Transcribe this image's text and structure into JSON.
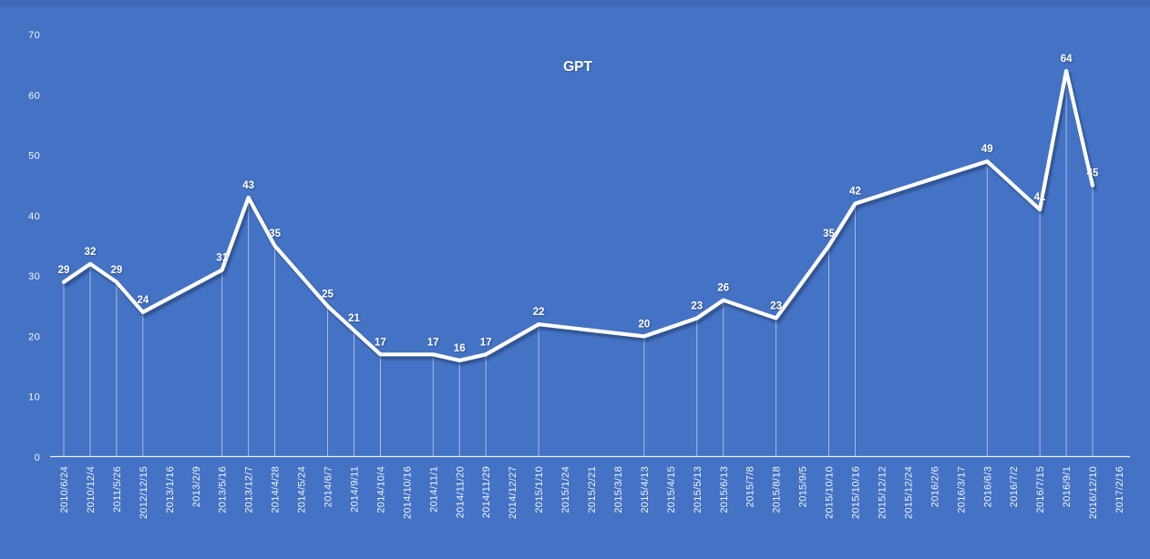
{
  "title": "GPT",
  "colors": {
    "background": "#4472C4",
    "top_edge": "#3E69B8",
    "line": "#FFFFFF",
    "line_shadow": "rgba(24,44,84,0.45)",
    "data_label": "#FFFFFF",
    "tick_label": "#F2F6FC",
    "axis_line": "rgba(255,255,255,0.9)",
    "drop_line": "rgba(255,255,255,0.6)"
  },
  "chart_data": {
    "type": "line",
    "title": "GPT",
    "categories": [
      "2010/6/24",
      "2010/12/4",
      "2011/5/26",
      "2012/12/15",
      "2013/1/16",
      "2013/2/9",
      "2013/5/16",
      "2013/12/7",
      "2014/4/28",
      "2014/5/24",
      "2014/6/7",
      "2014/9/11",
      "2014/10/4",
      "2014/10/16",
      "2014/11/1",
      "2014/11/20",
      "2014/11/29",
      "2014/12/27",
      "2015/1/10",
      "2015/1/24",
      "2015/2/21",
      "2015/3/18",
      "2015/4/13",
      "2015/4/15",
      "2015/5/13",
      "2015/6/13",
      "2015/7/8",
      "2015/8/18",
      "2015/9/5",
      "2015/10/10",
      "2015/10/16",
      "2015/12/12",
      "2015/12/24",
      "2016/2/6",
      "2016/3/17",
      "2016/6/3",
      "2016/7/2",
      "2016/7/15",
      "2016/9/1",
      "2016/12/10",
      "2017/2/16"
    ],
    "values": [
      29,
      32,
      29,
      24,
      null,
      null,
      31,
      43,
      35,
      null,
      25,
      21,
      17,
      null,
      17,
      16,
      17,
      null,
      22,
      null,
      null,
      null,
      20,
      null,
      23,
      26,
      null,
      23,
      null,
      35,
      42,
      null,
      null,
      null,
      null,
      49,
      null,
      41,
      64,
      45,
      null
    ],
    "xlabel": "",
    "ylabel": "",
    "ylim": [
      0,
      70
    ],
    "yticks": [
      0,
      10,
      20,
      30,
      40,
      50,
      60,
      70
    ],
    "grid": false,
    "legend": false,
    "data_labels": true,
    "drop_lines": true,
    "x_tick_rotation": -90,
    "connect_gaps": true
  }
}
